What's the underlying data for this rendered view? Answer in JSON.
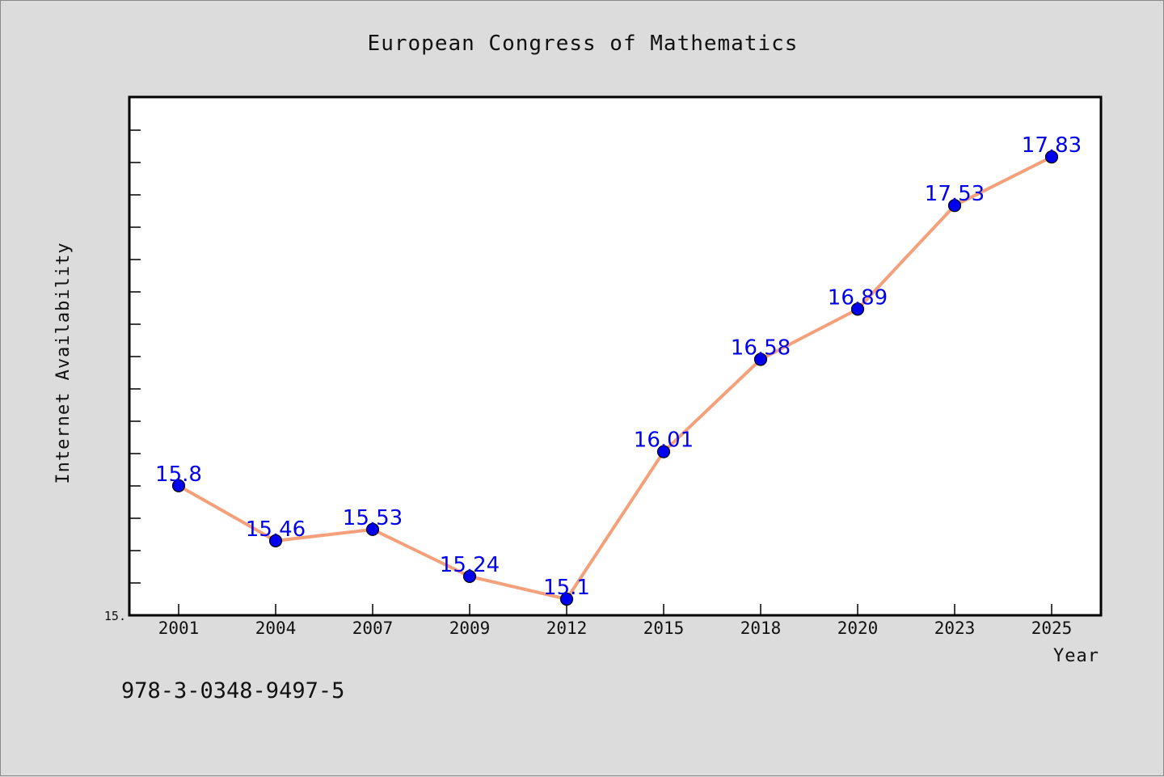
{
  "chart_data": {
    "type": "line",
    "title": "European Congress of Mathematics",
    "xlabel": "Year",
    "ylabel": "Internet Availability",
    "categories": [
      "2001",
      "2004",
      "2007",
      "2009",
      "2012",
      "2015",
      "2018",
      "2020",
      "2023",
      "2025"
    ],
    "series": [
      {
        "values": [
          15.8,
          15.46,
          15.53,
          15.24,
          15.1,
          16.01,
          16.58,
          16.89,
          17.53,
          17.83
        ],
        "data_labels": [
          "15.8",
          "15.46",
          "15.53",
          "15.24",
          "15.1",
          "16.01",
          "16.58",
          "16.89",
          "17.53",
          "17.83"
        ]
      }
    ],
    "ylim": [
      15.0,
      18.2
    ],
    "ytick_labels": [
      "15."
    ],
    "grid": false,
    "legend": false,
    "line_color": "#f4a07a",
    "marker_color": "#0000ee",
    "label_color": "#0000ee"
  },
  "footer": {
    "isbn": "978-3-0348-9497-5"
  }
}
